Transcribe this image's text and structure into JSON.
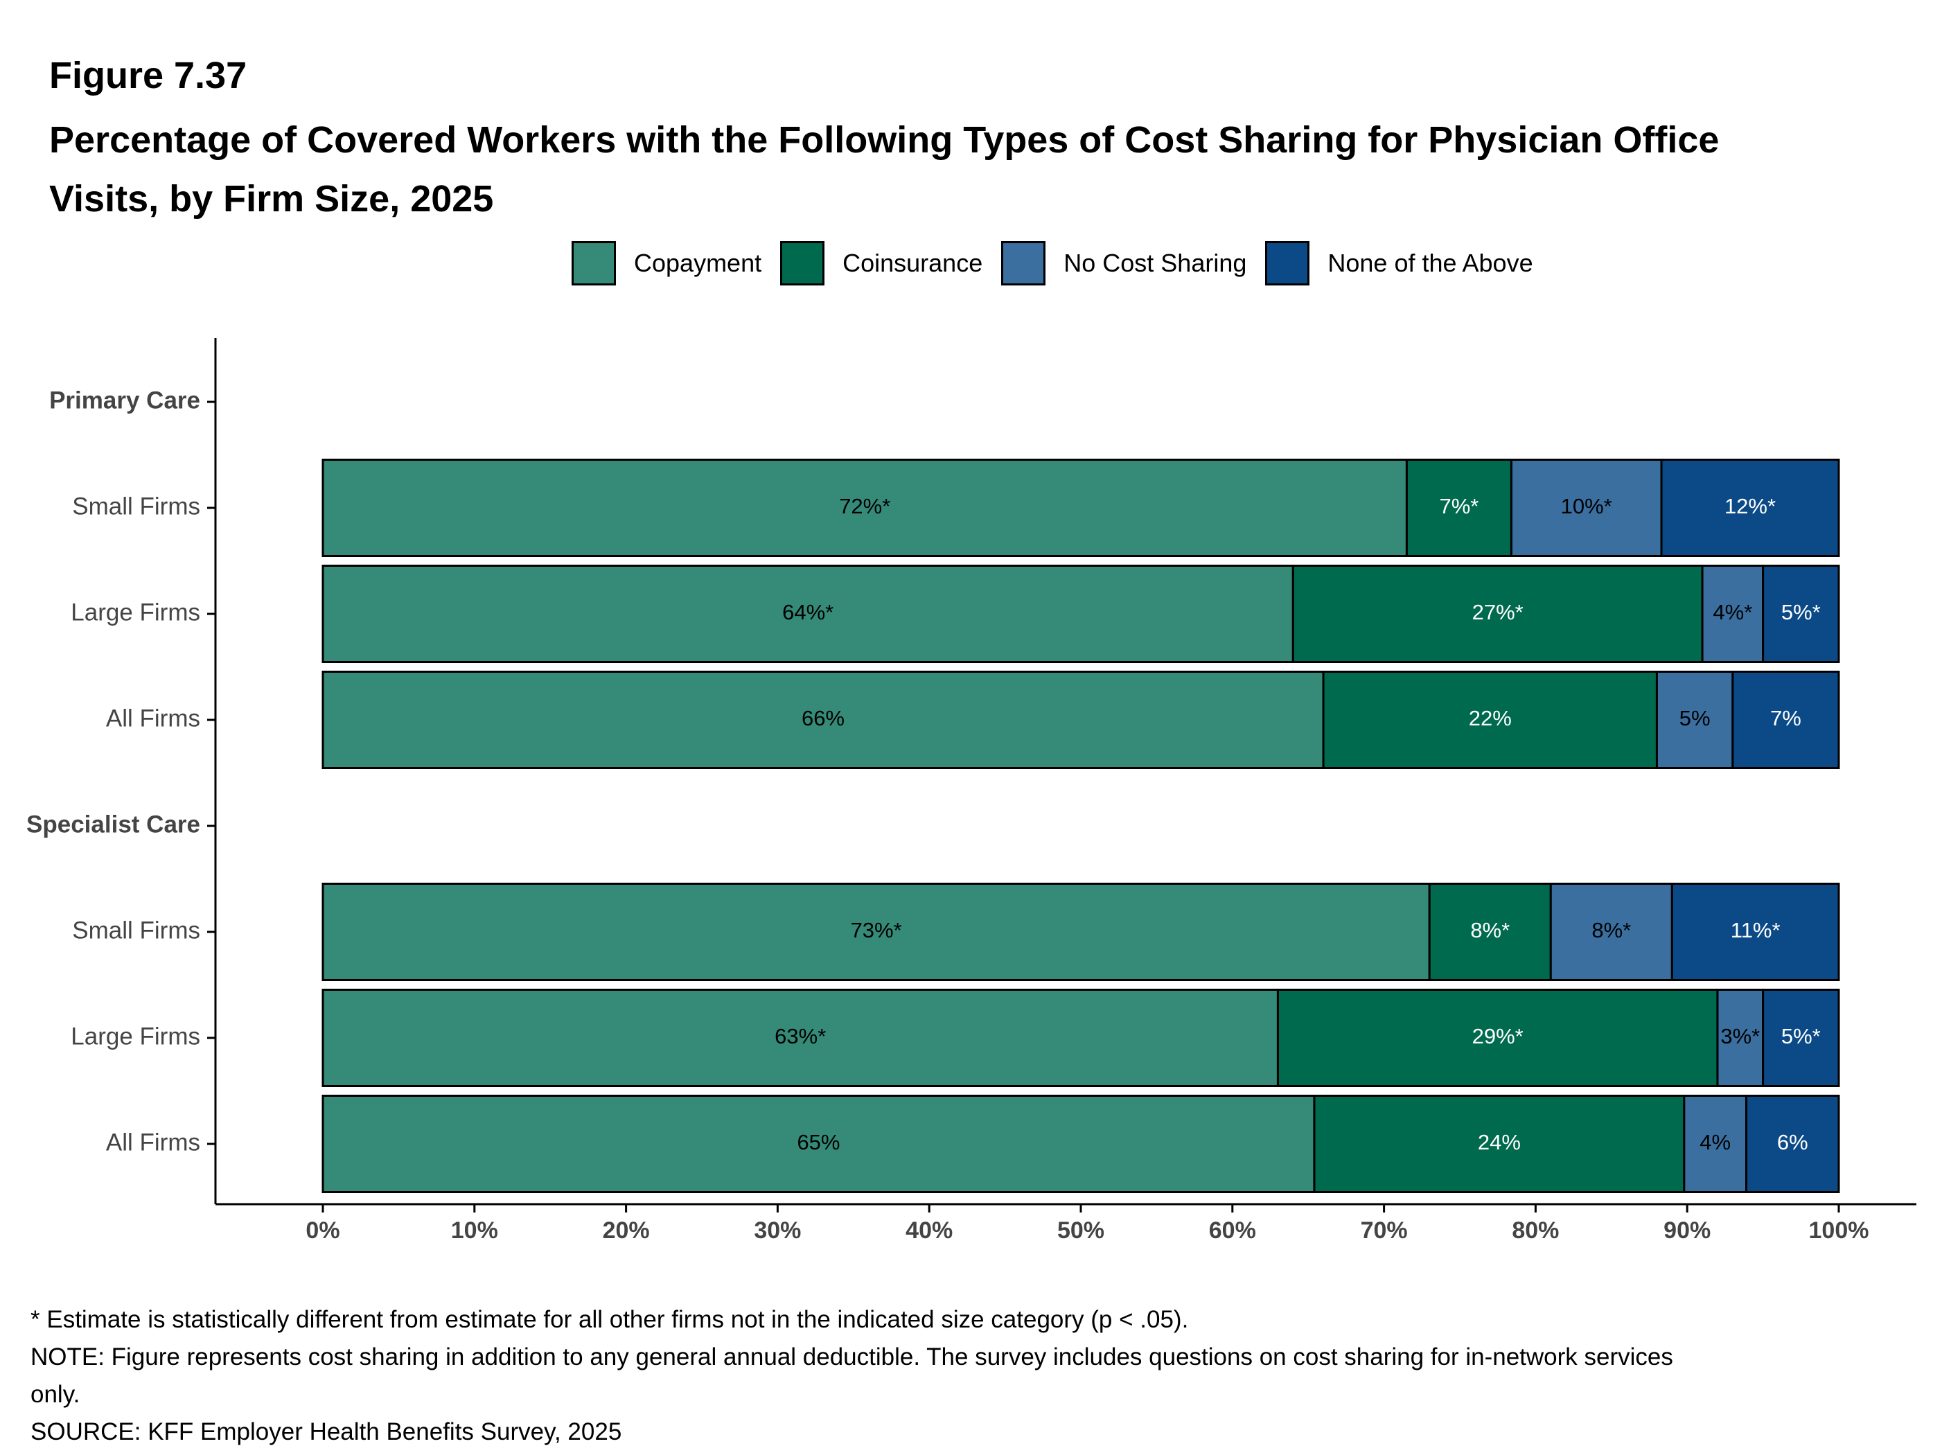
{
  "chart_data": {
    "type": "stacked-barh",
    "figure_label": "Figure 7.37",
    "title": "Percentage of Covered Workers with the Following Types of Cost Sharing for Physician Office Visits, by Firm Size, 2025",
    "categories": [
      "Primary Care",
      "Small Firms",
      "Large Firms",
      "All Firms",
      "Specialist Care",
      "Small Firms",
      "Large Firms",
      "All Firms"
    ],
    "series": [
      {
        "name": "Copayment",
        "color": "#358a78",
        "values": [
          null,
          71.5,
          64,
          66,
          null,
          73,
          63,
          65.4
        ],
        "value_labels": [
          null,
          "72%*",
          "64%*",
          "66%",
          null,
          "73%*",
          "63%*",
          "65%"
        ]
      },
      {
        "name": "Coinsurance",
        "color": "#006a4f",
        "values": [
          null,
          6.9,
          27,
          22,
          null,
          8,
          29,
          24.4
        ],
        "value_labels": [
          null,
          "7%*",
          "27%*",
          "22%",
          null,
          "8%*",
          "29%*",
          "24%"
        ]
      },
      {
        "name": "No Cost Sharing",
        "color": "#3a6fa0",
        "values": [
          null,
          9.9,
          4,
          5,
          null,
          8,
          3,
          4.1
        ],
        "value_labels": [
          null,
          "10%*",
          "4%*",
          "5%",
          null,
          "8%*",
          "3%*",
          "4%"
        ]
      },
      {
        "name": "None of the Above",
        "color": "#0b4a87",
        "values": [
          null,
          11.7,
          5,
          7,
          null,
          11,
          5,
          6.1
        ],
        "value_labels": [
          null,
          "12%*",
          "5%*",
          "7%",
          null,
          "11%*",
          "5%*",
          "6%"
        ]
      }
    ],
    "xlim": [
      0,
      100
    ],
    "xticks": [
      {
        "value": 0,
        "label": "0%"
      },
      {
        "value": 10,
        "label": "10%"
      },
      {
        "value": 20,
        "label": "20%"
      },
      {
        "value": 30,
        "label": "30%"
      },
      {
        "value": 40,
        "label": "40%"
      },
      {
        "value": 50,
        "label": "50%"
      },
      {
        "value": 60,
        "label": "60%"
      },
      {
        "value": 70,
        "label": "70%"
      },
      {
        "value": 80,
        "label": "80%"
      },
      {
        "value": 90,
        "label": "90%"
      },
      {
        "value": 100,
        "label": "100%"
      }
    ],
    "grid": false,
    "legend": "top",
    "notes": [
      "* Estimate is statistically different from estimate for all other firms not in the indicated size category (p < .05).",
      "NOTE: Figure represents cost sharing in addition to any general annual deductible. The survey includes questions on cost sharing for in-network services only.",
      "SOURCE: KFF Employer Health Benefits Survey, 2025"
    ]
  }
}
